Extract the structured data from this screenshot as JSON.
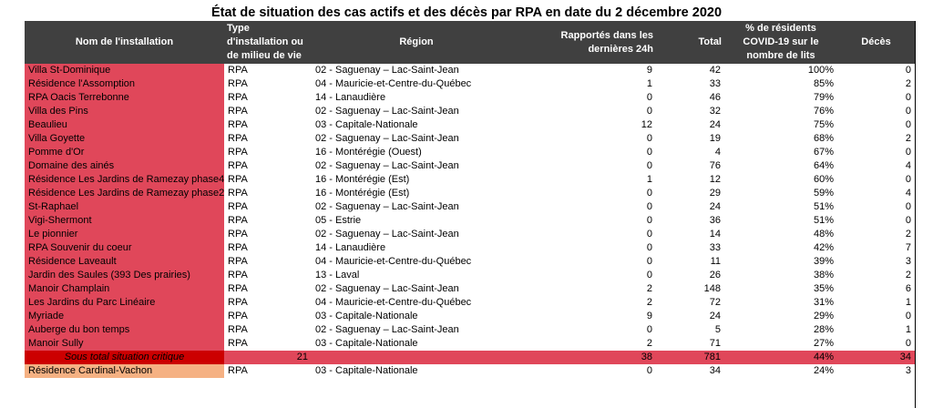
{
  "title": "État de situation des cas actifs et des décès par RPA en date du 2 décembre 2020",
  "headers": {
    "name": "Nom de l'installation",
    "type": "Type d'installation ou de milieu de vie",
    "region": "Région",
    "recent": "Rapportés dans les dernières 24h",
    "total": "Total",
    "pct": "% de résidents COVID-19 sur le nombre de lits",
    "deaths": "Décès"
  },
  "rows": [
    {
      "name": "Villa St-Dominique",
      "type": "RPA",
      "region": "02 - Saguenay – Lac-Saint-Jean",
      "recent": "9",
      "total": "42",
      "pct": "100%",
      "deaths": "0"
    },
    {
      "name": "Résidence l'Assomption",
      "type": "RPA",
      "region": "04 - Mauricie-et-Centre-du-Québec",
      "recent": "1",
      "total": "33",
      "pct": "85%",
      "deaths": "2"
    },
    {
      "name": "RPA Oacis Terrebonne",
      "type": "RPA",
      "region": "14 - Lanaudière",
      "recent": "0",
      "total": "46",
      "pct": "79%",
      "deaths": "0"
    },
    {
      "name": "Villa des Pins",
      "type": "RPA",
      "region": "02 - Saguenay – Lac-Saint-Jean",
      "recent": "0",
      "total": "32",
      "pct": "76%",
      "deaths": "0"
    },
    {
      "name": "Beaulieu",
      "type": "RPA",
      "region": "03 - Capitale-Nationale",
      "recent": "12",
      "total": "24",
      "pct": "75%",
      "deaths": "0"
    },
    {
      "name": "Villa Goyette",
      "type": "RPA",
      "region": "02 - Saguenay – Lac-Saint-Jean",
      "recent": "0",
      "total": "19",
      "pct": "68%",
      "deaths": "2"
    },
    {
      "name": "Pomme d'Or",
      "type": "RPA",
      "region": "16 - Montérégie (Ouest)",
      "recent": "0",
      "total": "4",
      "pct": "67%",
      "deaths": "0"
    },
    {
      "name": "Domaine des ainés",
      "type": "RPA",
      "region": "02 - Saguenay – Lac-Saint-Jean",
      "recent": "0",
      "total": "76",
      "pct": "64%",
      "deaths": "4"
    },
    {
      "name": "Résidence Les Jardins de Ramezay phase4",
      "type": "RPA",
      "region": "16 - Montérégie (Est)",
      "recent": "1",
      "total": "12",
      "pct": "60%",
      "deaths": "0"
    },
    {
      "name": "Résidence Les Jardins de Ramezay phase2",
      "type": "RPA",
      "region": "16 - Montérégie (Est)",
      "recent": "0",
      "total": "29",
      "pct": "59%",
      "deaths": "4"
    },
    {
      "name": "St-Raphael",
      "type": "RPA",
      "region": "02 - Saguenay – Lac-Saint-Jean",
      "recent": "0",
      "total": "24",
      "pct": "51%",
      "deaths": "0"
    },
    {
      "name": "Vigi-Shermont",
      "type": "RPA",
      "region": "05 - Estrie",
      "recent": "0",
      "total": "36",
      "pct": "51%",
      "deaths": "0"
    },
    {
      "name": "Le pionnier",
      "type": "RPA",
      "region": "02 - Saguenay – Lac-Saint-Jean",
      "recent": "0",
      "total": "14",
      "pct": "48%",
      "deaths": "2"
    },
    {
      "name": "RPA Souvenir du coeur",
      "type": "RPA",
      "region": "14 - Lanaudière",
      "recent": "0",
      "total": "33",
      "pct": "42%",
      "deaths": "7"
    },
    {
      "name": "Résidence Laveault",
      "type": "RPA",
      "region": "04 - Mauricie-et-Centre-du-Québec",
      "recent": "0",
      "total": "11",
      "pct": "39%",
      "deaths": "3"
    },
    {
      "name": "Jardin des Saules (393 Des prairies)",
      "type": "RPA",
      "region": "13 - Laval",
      "recent": "0",
      "total": "26",
      "pct": "38%",
      "deaths": "2"
    },
    {
      "name": "Manoir Champlain",
      "type": "RPA",
      "region": "02 - Saguenay – Lac-Saint-Jean",
      "recent": "2",
      "total": "148",
      "pct": "35%",
      "deaths": "6"
    },
    {
      "name": "Les Jardins du Parc Linéaire",
      "type": "RPA",
      "region": "04 - Mauricie-et-Centre-du-Québec",
      "recent": "2",
      "total": "72",
      "pct": "31%",
      "deaths": "1"
    },
    {
      "name": "Myriade",
      "type": "RPA",
      "region": "03 - Capitale-Nationale",
      "recent": "9",
      "total": "24",
      "pct": "29%",
      "deaths": "0"
    },
    {
      "name": "Auberge du bon temps",
      "type": "RPA",
      "region": "02 - Saguenay – Lac-Saint-Jean",
      "recent": "0",
      "total": "5",
      "pct": "28%",
      "deaths": "1"
    },
    {
      "name": "Manoir Sully",
      "type": "RPA",
      "region": "03 - Capitale-Nationale",
      "recent": "2",
      "total": "71",
      "pct": "27%",
      "deaths": "0"
    }
  ],
  "subtotal": {
    "label": "Sous total situation critique",
    "count": "21",
    "recent": "38",
    "total": "781",
    "pct": "44%",
    "deaths": "34"
  },
  "next_row": {
    "name": "Résidence Cardinal-Vachon",
    "type": "RPA",
    "region": "03 - Capitale-Nationale",
    "recent": "0",
    "total": "34",
    "pct": "24%",
    "deaths": "3"
  },
  "colors": {
    "critical": "#e0475a",
    "subtotal_label": "#cc0000",
    "warning": "#f5b183",
    "header": "#404040"
  }
}
